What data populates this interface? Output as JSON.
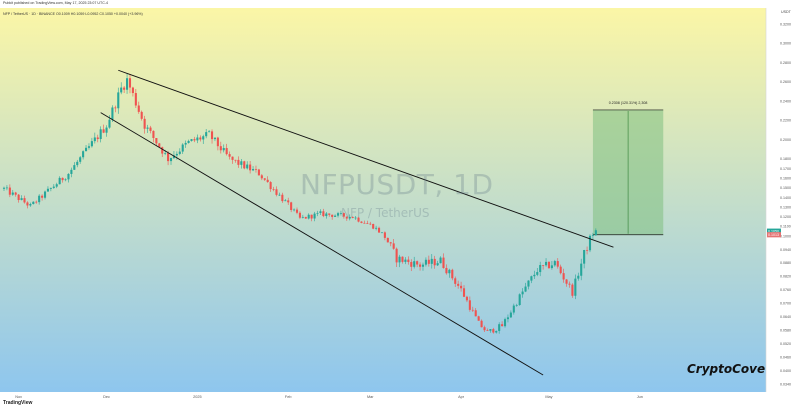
{
  "header": {
    "published_by": "Pubkit published on TradingView.com, May 17, 2025 23:07 UTC-4",
    "symbol_line": "NFP / TetherUS · 1D · BINANCE O0.1009 H0.1059 L0.0952 C0.1050 +0.0040 (+3.96%)"
  },
  "watermark": {
    "symbol": "NFPUSDT, 1D",
    "name": "NFP / TetherUS"
  },
  "brand": "CryptoCove",
  "footer_logo": "TradingView",
  "colors": {
    "up": "#26a69a",
    "down": "#ef5350",
    "trendline": "#111111",
    "target_box": "#7fbf7f",
    "bg_top": "#fbf6a6",
    "bg_bottom": "#8ec6ee"
  },
  "chart_data": {
    "type": "candlestick",
    "x_axis_labels": [
      "Nov",
      "Dec",
      "2025",
      "Feb",
      "Mar",
      "Apr",
      "May",
      "Jun"
    ],
    "y_axis_labels": [
      "0.3200",
      "0.3000",
      "0.2800",
      "0.2600",
      "0.2400",
      "0.2200",
      "0.2000",
      "0.1800",
      "0.1700",
      "0.1600",
      "0.1500",
      "0.1400",
      "0.1300",
      "0.1200",
      "0.1100",
      "0.1000",
      "0.0940",
      "0.0880",
      "0.0820",
      "0.0760",
      "0.0700",
      "0.0640",
      "0.0580",
      "0.0520",
      "0.0460",
      "0.0400",
      "0.0340"
    ],
    "y_axis_top_label": "USDT",
    "price_markers": [
      "0.1050",
      "0.1013"
    ],
    "annotation": "0.2308 (120.31%) 2,308",
    "close_path": [
      {
        "date": "2024-10-27",
        "close": 0.149
      },
      {
        "date": "2024-11-05",
        "close": 0.131
      },
      {
        "date": "2024-11-18",
        "close": 0.165
      },
      {
        "date": "2024-12-01",
        "close": 0.215
      },
      {
        "date": "2024-12-06",
        "close": 0.253
      },
      {
        "date": "2024-12-08",
        "close": 0.262
      },
      {
        "date": "2024-12-14",
        "close": 0.215
      },
      {
        "date": "2024-12-22",
        "close": 0.18
      },
      {
        "date": "2024-12-29",
        "close": 0.197
      },
      {
        "date": "2025-01-05",
        "close": 0.205
      },
      {
        "date": "2025-01-12",
        "close": 0.18
      },
      {
        "date": "2025-01-22",
        "close": 0.165
      },
      {
        "date": "2025-02-01",
        "close": 0.132
      },
      {
        "date": "2025-02-05",
        "close": 0.118
      },
      {
        "date": "2025-02-12",
        "close": 0.123
      },
      {
        "date": "2025-02-23",
        "close": 0.12
      },
      {
        "date": "2025-03-02",
        "close": 0.11
      },
      {
        "date": "2025-03-10",
        "close": 0.09
      },
      {
        "date": "2025-03-18",
        "close": 0.087
      },
      {
        "date": "2025-03-25",
        "close": 0.089
      },
      {
        "date": "2025-04-01",
        "close": 0.076
      },
      {
        "date": "2025-04-07",
        "close": 0.061
      },
      {
        "date": "2025-04-10",
        "close": 0.057
      },
      {
        "date": "2025-04-15",
        "close": 0.06
      },
      {
        "date": "2025-04-22",
        "close": 0.075
      },
      {
        "date": "2025-04-27",
        "close": 0.085
      },
      {
        "date": "2025-05-03",
        "close": 0.088
      },
      {
        "date": "2025-05-09",
        "close": 0.075
      },
      {
        "date": "2025-05-13",
        "close": 0.092
      },
      {
        "date": "2025-05-17",
        "close": 0.105
      }
    ],
    "trendlines": [
      {
        "name": "upper",
        "from": {
          "date": "2024-12-05",
          "price": 0.272
        },
        "to": {
          "date": "2025-05-23",
          "price": 0.095
        }
      },
      {
        "name": "lower",
        "from": {
          "date": "2024-11-29",
          "price": 0.228
        },
        "to": {
          "date": "2025-04-29",
          "price": 0.038
        }
      }
    ],
    "target_box": {
      "from_date": "2025-05-16",
      "to_date": "2025-06-09",
      "bottom": 0.1013,
      "top": 0.2308
    },
    "grid": false,
    "background": "vertical gradient yellow to blue"
  }
}
